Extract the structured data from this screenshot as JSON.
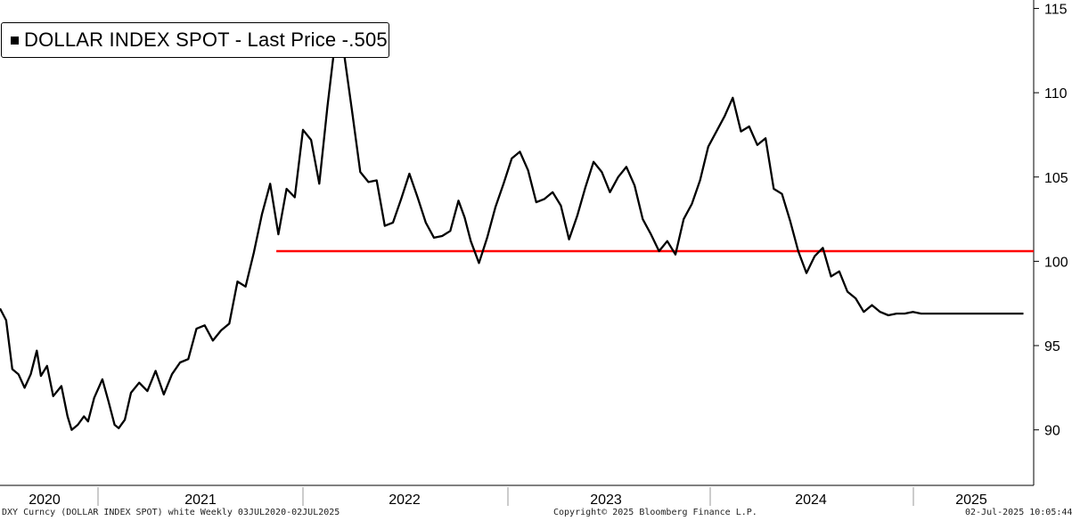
{
  "legend": {
    "text": "DOLLAR INDEX SPOT - Last Price  -.505"
  },
  "footer": {
    "left": "DXY Curncy (DOLLAR INDEX SPOT) white  Weekly 03JUL2020-02JUL2025",
    "center": "Copyright© 2025 Bloomberg Finance L.P.",
    "right": "02-Jul-2025 10:05:44"
  },
  "colors": {
    "series": "#000000",
    "reference_line": "#ff0000",
    "background": "#ffffff"
  },
  "chart_data": {
    "type": "line",
    "title": "",
    "xlabel": "",
    "ylabel": "",
    "ylim": [
      87.5,
      115.5
    ],
    "yticks": [
      90,
      95,
      100,
      105,
      110,
      115
    ],
    "xticks": [
      "2020",
      "2021",
      "2022",
      "2023",
      "2024",
      "2025"
    ],
    "xrange": [
      2020.5,
      2025.55
    ],
    "reference_lines": [
      {
        "y": 100.6,
        "x_start": 2021.85,
        "x_end": 2025.55
      }
    ],
    "series": [
      {
        "name": "DOLLAR INDEX SPOT",
        "x": [
          2020.5,
          2020.53,
          2020.56,
          2020.59,
          2020.62,
          2020.65,
          2020.68,
          2020.7,
          2020.73,
          2020.76,
          2020.8,
          2020.83,
          2020.85,
          2020.88,
          2020.91,
          2020.93,
          2020.96,
          2021.0,
          2021.03,
          2021.06,
          2021.08,
          2021.11,
          2021.14,
          2021.18,
          2021.22,
          2021.26,
          2021.3,
          2021.34,
          2021.38,
          2021.42,
          2021.46,
          2021.5,
          2021.54,
          2021.58,
          2021.62,
          2021.66,
          2021.7,
          2021.74,
          2021.78,
          2021.82,
          2021.86,
          2021.9,
          2021.94,
          2021.98,
          2022.02,
          2022.06,
          2022.1,
          2022.14,
          2022.18,
          2022.22,
          2022.26,
          2022.3,
          2022.34,
          2022.38,
          2022.42,
          2022.46,
          2022.5,
          2022.54,
          2022.58,
          2022.62,
          2022.66,
          2022.7,
          2022.74,
          2022.77,
          2022.8,
          2022.84,
          2022.88,
          2022.92,
          2022.96,
          2023.0,
          2023.04,
          2023.08,
          2023.12,
          2023.16,
          2023.2,
          2023.24,
          2023.28,
          2023.32,
          2023.36,
          2023.4,
          2023.44,
          2023.48,
          2023.52,
          2023.56,
          2023.6,
          2023.64,
          2023.68,
          2023.72,
          2023.76,
          2023.8,
          2023.84,
          2023.88,
          2023.92,
          2023.96,
          2024.0,
          2024.04,
          2024.08,
          2024.12,
          2024.16,
          2024.2,
          2024.24,
          2024.28,
          2024.32,
          2024.36,
          2024.4,
          2024.44,
          2024.48,
          2024.52,
          2024.56,
          2024.6,
          2024.64,
          2024.68,
          2024.72,
          2024.76,
          2024.8,
          2024.84,
          2024.88,
          2024.92,
          2024.96,
          2025.0,
          2025.04,
          2025.08,
          2025.12,
          2025.16,
          2025.2,
          2025.24,
          2025.28,
          2025.32,
          2025.36,
          2025.4,
          2025.44,
          2025.48,
          2025.5
        ],
        "values": [
          97.2,
          96.5,
          93.6,
          93.3,
          92.5,
          93.3,
          94.7,
          93.2,
          93.8,
          92.0,
          92.6,
          90.8,
          90.0,
          90.3,
          90.8,
          90.5,
          91.9,
          93.0,
          91.7,
          90.3,
          90.1,
          90.6,
          92.2,
          92.8,
          92.3,
          93.5,
          92.1,
          93.3,
          94.0,
          94.2,
          96.0,
          96.2,
          95.3,
          95.9,
          96.3,
          98.8,
          98.5,
          100.5,
          102.8,
          104.6,
          101.6,
          104.3,
          103.8,
          107.8,
          107.2,
          104.6,
          109.2,
          113.3,
          112.4,
          108.9,
          105.3,
          104.7,
          104.8,
          102.1,
          102.3,
          103.7,
          105.2,
          103.8,
          102.3,
          101.4,
          101.5,
          101.8,
          103.6,
          102.6,
          101.2,
          99.9,
          101.4,
          103.2,
          104.6,
          106.1,
          106.5,
          105.4,
          103.5,
          103.7,
          104.1,
          103.3,
          101.3,
          102.7,
          104.4,
          105.9,
          105.3,
          104.1,
          105.0,
          105.6,
          104.5,
          102.5,
          101.6,
          100.6,
          101.2,
          100.4,
          102.5,
          103.4,
          104.8,
          106.8,
          107.7,
          108.6,
          109.7,
          107.7,
          108.0,
          106.9,
          107.3,
          104.3,
          104.0,
          102.4,
          100.6,
          99.3,
          100.3,
          100.8,
          99.1,
          99.4,
          98.2,
          97.8,
          97.0,
          97.4,
          97.0,
          96.8,
          96.9,
          96.9,
          97.0,
          96.9,
          96.9,
          96.9,
          96.9,
          96.9,
          96.9,
          96.9,
          96.9,
          96.9,
          96.9,
          96.9,
          96.9,
          96.9,
          96.9
        ]
      }
    ]
  }
}
